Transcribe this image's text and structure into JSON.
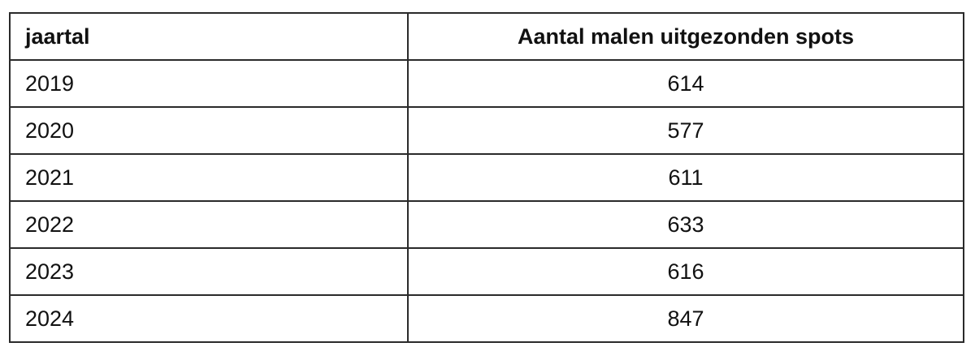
{
  "table": {
    "headers": [
      "jaartal",
      "Aantal malen uitgezonden spots"
    ],
    "rows": [
      [
        "2019",
        "614"
      ],
      [
        "2020",
        "577"
      ],
      [
        "2021",
        "611"
      ],
      [
        "2022",
        "633"
      ],
      [
        "2023",
        "616"
      ],
      [
        "2024",
        "847"
      ]
    ]
  }
}
